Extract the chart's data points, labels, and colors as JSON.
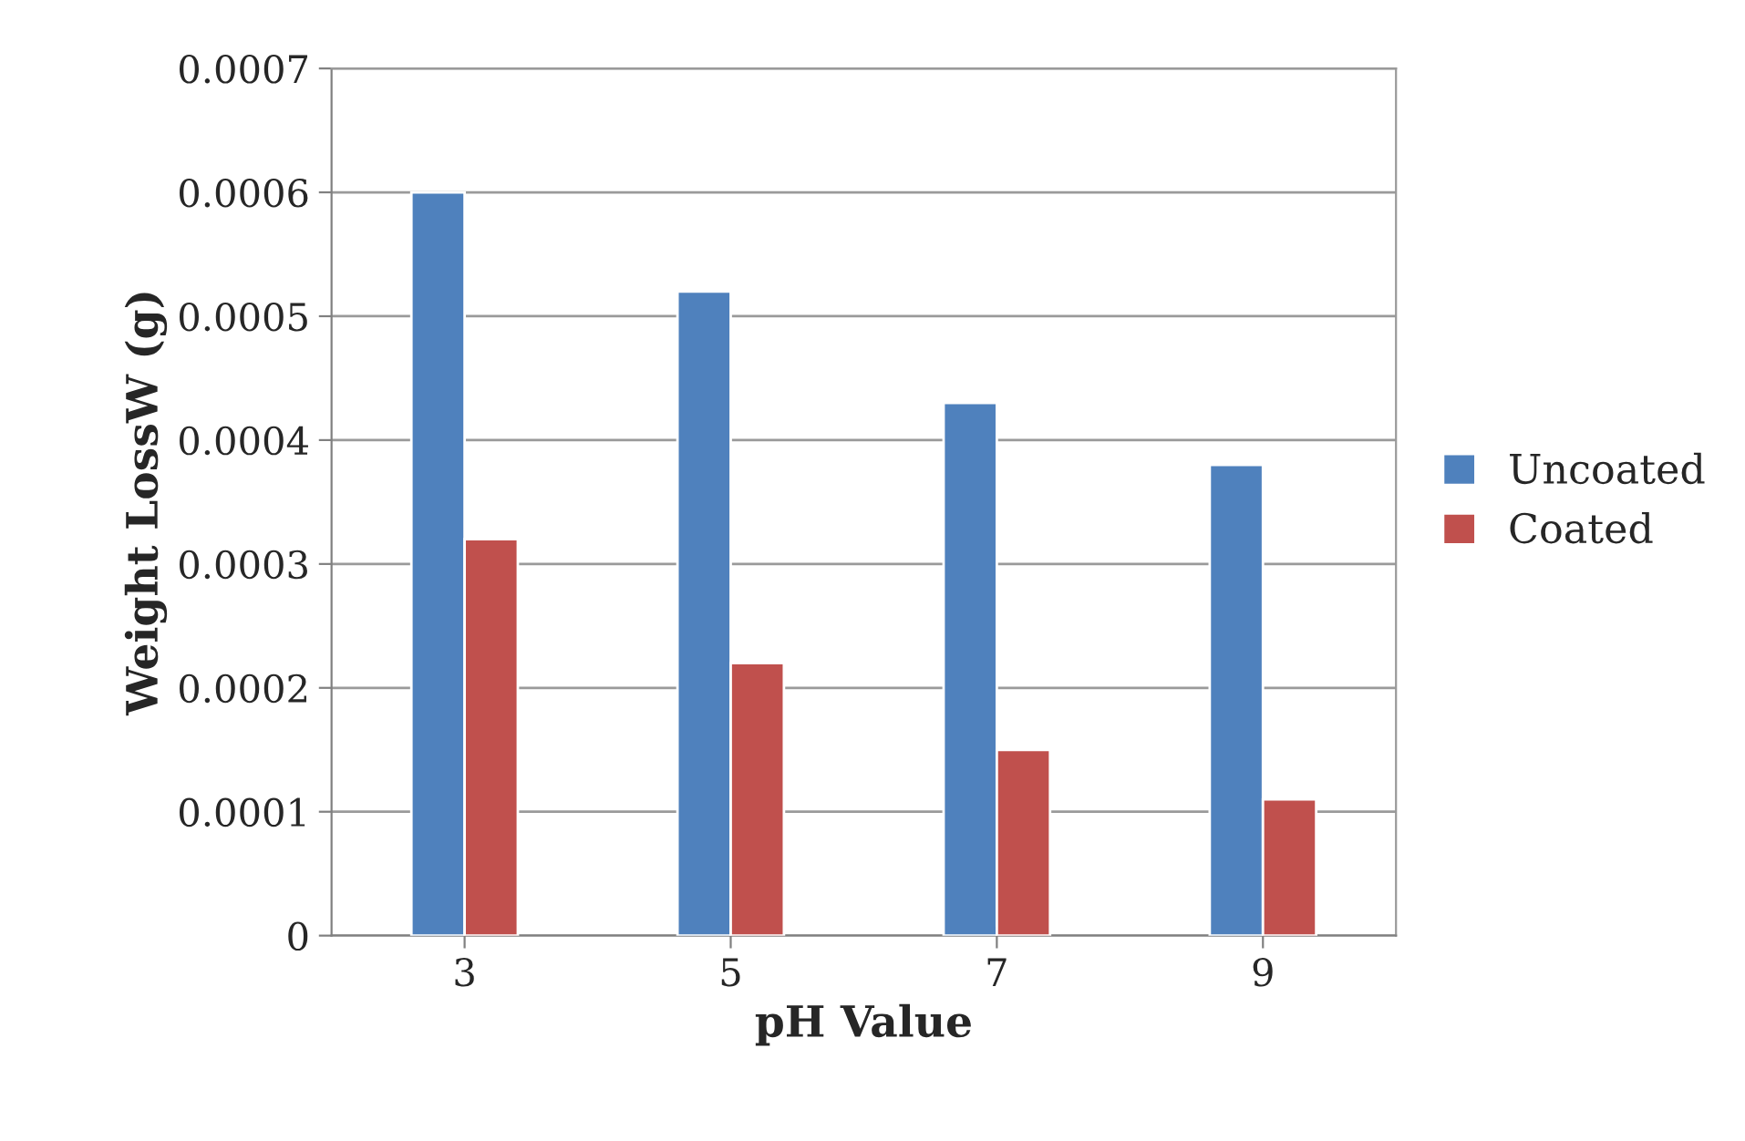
{
  "chart_data": {
    "type": "bar",
    "xlabel": "pH Value",
    "ylabel": "Weight LossW (g)",
    "categories": [
      "3",
      "5",
      "7",
      "9"
    ],
    "series": [
      {
        "name": "Uncoated",
        "color": "#4f81bd",
        "values": [
          0.0006,
          0.00052,
          0.00043,
          0.00038
        ]
      },
      {
        "name": "Coated",
        "color": "#c0504d",
        "values": [
          0.00032,
          0.00022,
          0.00015,
          0.00011
        ]
      }
    ],
    "ylim": [
      0,
      0.0007
    ],
    "yticks": [
      {
        "value": 0,
        "label": "0"
      },
      {
        "value": 0.0001,
        "label": "0.0001"
      },
      {
        "value": 0.0002,
        "label": "0.0002"
      },
      {
        "value": 0.0003,
        "label": "0.0003"
      },
      {
        "value": 0.0004,
        "label": "0.0004"
      },
      {
        "value": 0.0005,
        "label": "0.0005"
      },
      {
        "value": 0.0006,
        "label": "0.0006"
      },
      {
        "value": 0.0007,
        "label": "0.0007"
      }
    ],
    "grid": "y",
    "legend": "right"
  }
}
